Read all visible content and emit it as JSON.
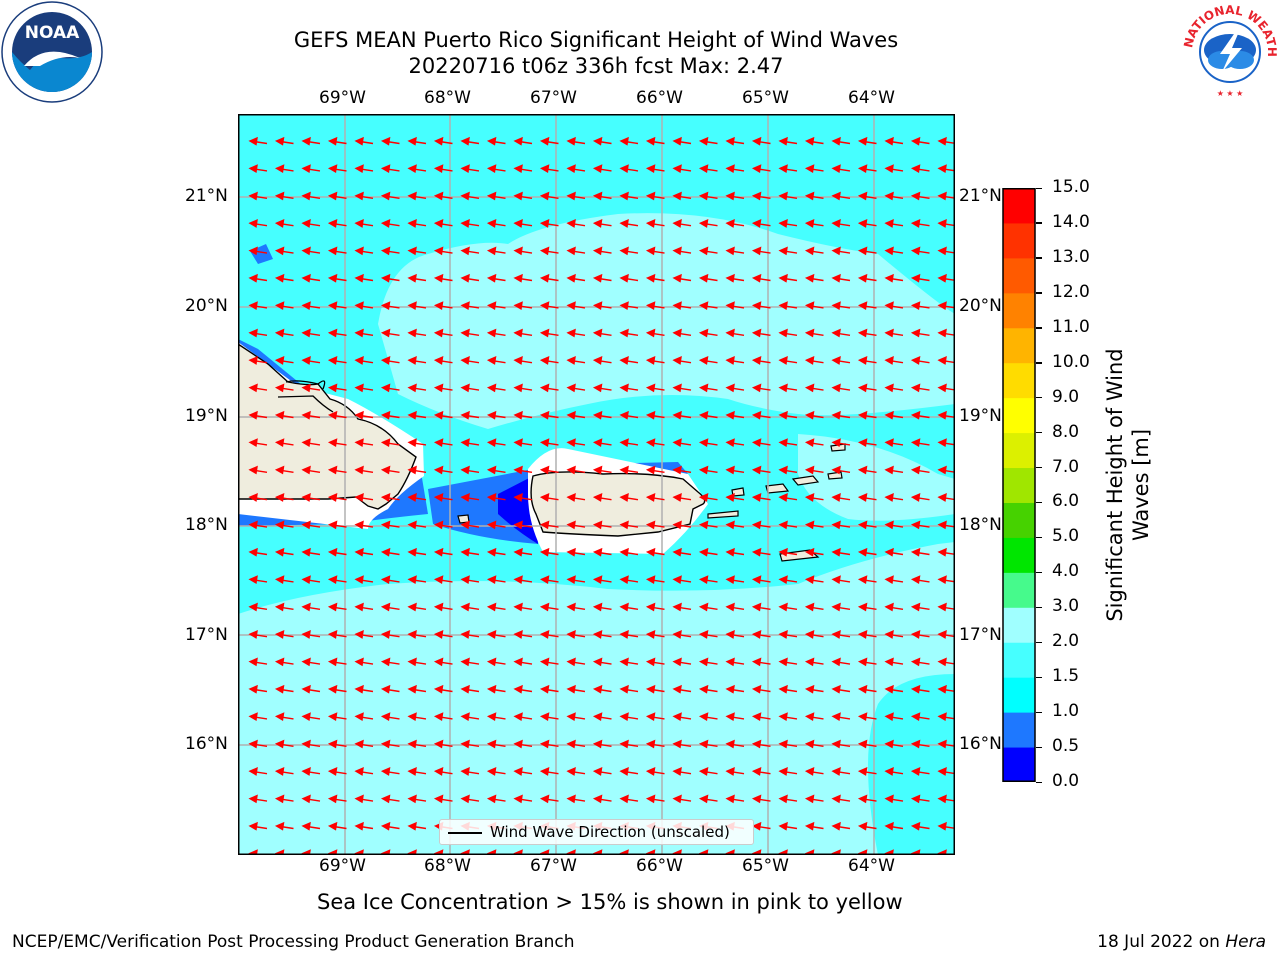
{
  "title": {
    "line1": "GEFS MEAN Puerto Rico Significant Height of Wind Waves",
    "line2": "20220716 t06z 336h fcst   Max: 2.47"
  },
  "logos": {
    "left": {
      "text": "NOAA",
      "ring_text": "NATIONAL OCEANIC AND ATMOSPHERIC ADMINISTRATION · U.S. DEPARTMENT OF COMMERCE"
    },
    "right": {
      "ring_text": "NATIONAL WEATHER SERVICE"
    }
  },
  "map": {
    "lon_labels": [
      "69°W",
      "68°W",
      "67°W",
      "66°W",
      "65°W",
      "64°W"
    ],
    "lat_labels": [
      "21°N",
      "20°N",
      "19°N",
      "18°N",
      "17°N",
      "16°N"
    ],
    "legend": "Wind Wave Direction (unscaled)",
    "arrow_color": "#ff0000",
    "coastline_color": "#000000",
    "land_color": "#efedde"
  },
  "colorbar": {
    "label": "Significant Height of Wind Waves [m]",
    "label_lines": [
      "Significant Height of Wind",
      "Waves [m]"
    ],
    "ticks": [
      "0.0",
      "0.5",
      "1.0",
      "1.5",
      "2.0",
      "3.0",
      "4.0",
      "5.0",
      "6.0",
      "7.0",
      "8.0",
      "9.0",
      "10.0",
      "11.0",
      "12.0",
      "13.0",
      "14.0",
      "15.0"
    ],
    "colors": [
      "#0000ff",
      "#1e78ff",
      "#00ffff",
      "#46ffff",
      "#a0ffff",
      "#46fa8c",
      "#00e600",
      "#46d200",
      "#a0e600",
      "#dcf000",
      "#ffff00",
      "#ffdc00",
      "#ffb400",
      "#ff8200",
      "#ff5a00",
      "#ff3200",
      "#ff0000"
    ]
  },
  "note": "Sea Ice Concentration > 15% is shown in pink to yellow",
  "footer": {
    "left": "NCEP/EMC/Verification Post Processing Product Generation Branch",
    "right_prefix": "18 Jul 2022 on ",
    "right_italic": "Hera"
  }
}
